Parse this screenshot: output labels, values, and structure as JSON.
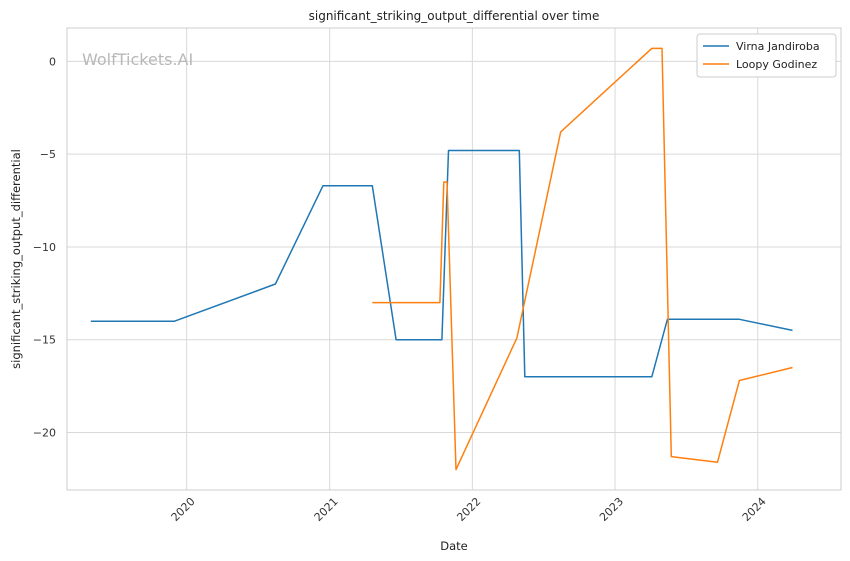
{
  "chart_data": {
    "type": "line",
    "title": "significant_striking_output_differential over time",
    "xlabel": "Date",
    "ylabel": "significant_striking_output_differential",
    "watermark": "WolfTickets.AI",
    "x_ticks": [
      "2020",
      "2021",
      "2022",
      "2023",
      "2024"
    ],
    "y_ticks": [
      0,
      -5,
      -10,
      -15,
      -20
    ],
    "xlim": [
      "2019-03-01",
      "2024-08-01"
    ],
    "ylim": [
      -23.1,
      1.8
    ],
    "grid": true,
    "legend_position": "top-right",
    "colors": {
      "Virna Jandiroba": "#1f77b4",
      "Loopy Godinez": "#ff7f0e"
    },
    "series": [
      {
        "name": "Virna Jandiroba",
        "points": [
          [
            "2019-05-01",
            -14.0
          ],
          [
            "2019-12-01",
            -14.0
          ],
          [
            "2020-08-15",
            -12.0
          ],
          [
            "2020-12-15",
            -6.7
          ],
          [
            "2021-04-20",
            -6.7
          ],
          [
            "2021-06-20",
            -15.0
          ],
          [
            "2021-10-15",
            -15.0
          ],
          [
            "2021-11-01",
            -4.8
          ],
          [
            "2022-05-01",
            -4.8
          ],
          [
            "2022-05-15",
            -17.0
          ],
          [
            "2023-04-05",
            -17.0
          ],
          [
            "2023-05-15",
            -13.9
          ],
          [
            "2023-11-15",
            -13.9
          ],
          [
            "2024-03-30",
            -14.5
          ]
        ]
      },
      {
        "name": "Loopy Godinez",
        "points": [
          [
            "2021-04-20",
            -13.0
          ],
          [
            "2021-10-10",
            -13.0
          ],
          [
            "2021-10-20",
            -6.5
          ],
          [
            "2021-10-28",
            -6.5
          ],
          [
            "2021-11-20",
            -22.0
          ],
          [
            "2022-04-25",
            -14.9
          ],
          [
            "2022-08-15",
            -3.8
          ],
          [
            "2023-04-05",
            0.7
          ],
          [
            "2023-05-01",
            0.7
          ],
          [
            "2023-05-25",
            -21.3
          ],
          [
            "2023-09-20",
            -21.6
          ],
          [
            "2023-11-15",
            -17.2
          ],
          [
            "2024-03-30",
            -16.5
          ]
        ]
      }
    ]
  }
}
